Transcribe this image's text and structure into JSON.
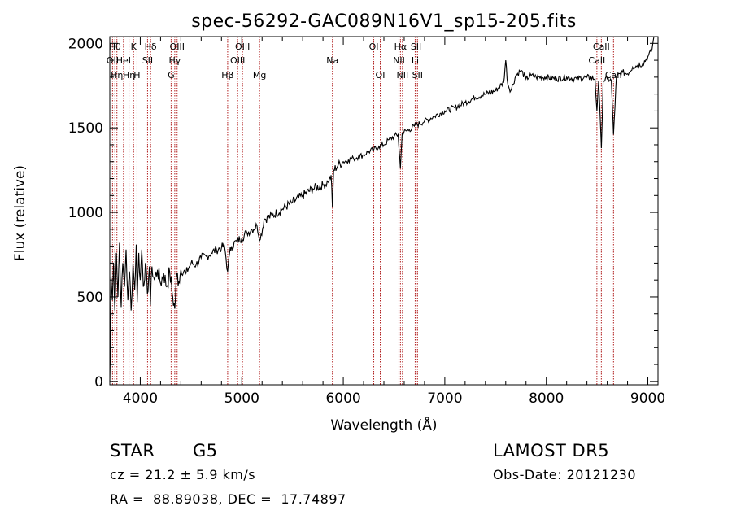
{
  "chart_data": {
    "type": "line",
    "title": "spec-56292-GAC089N16V1_sp15-205.fits",
    "xlabel": "Wavelength (Å)",
    "ylabel": "Flux (relative)",
    "xlim": [
      3700,
      9100
    ],
    "ylim": [
      -20,
      2040
    ],
    "x_ticks": [
      4000,
      5000,
      6000,
      7000,
      8000,
      9000
    ],
    "x_tick_labels": [
      "4000",
      "5000",
      "6000",
      "7000",
      "8000",
      "9000"
    ],
    "y_ticks": [
      0,
      500,
      1000,
      1500,
      2000
    ],
    "y_tick_labels": [
      "0",
      "500",
      "1000",
      "1500",
      "2000"
    ],
    "grid": false,
    "series": [
      {
        "points": [
          [
            3700,
            0
          ],
          [
            3705,
            150
          ],
          [
            3712,
            620
          ],
          [
            3725,
            480
          ],
          [
            3738,
            700
          ],
          [
            3750,
            420
          ],
          [
            3765,
            760
          ],
          [
            3780,
            500
          ],
          [
            3795,
            820
          ],
          [
            3812,
            440
          ],
          [
            3828,
            700
          ],
          [
            3845,
            560
          ],
          [
            3860,
            780
          ],
          [
            3878,
            480
          ],
          [
            3895,
            650
          ],
          [
            3910,
            420
          ],
          [
            3928,
            700
          ],
          [
            3945,
            540
          ],
          [
            3960,
            810
          ],
          [
            3970,
            470
          ],
          [
            3985,
            760
          ],
          [
            4000,
            600
          ],
          [
            4015,
            780
          ],
          [
            4030,
            560
          ],
          [
            4050,
            700
          ],
          [
            4070,
            520
          ],
          [
            4090,
            680
          ],
          [
            4100,
            450
          ],
          [
            4115,
            680
          ],
          [
            4140,
            600
          ],
          [
            4170,
            660
          ],
          [
            4200,
            580
          ],
          [
            4230,
            640
          ],
          [
            4260,
            560
          ],
          [
            4290,
            650
          ],
          [
            4320,
            500
          ],
          [
            4340,
            430
          ],
          [
            4360,
            640
          ],
          [
            4380,
            590
          ],
          [
            4400,
            660
          ],
          [
            4450,
            640
          ],
          [
            4500,
            700
          ],
          [
            4550,
            690
          ],
          [
            4600,
            730
          ],
          [
            4650,
            740
          ],
          [
            4700,
            760
          ],
          [
            4750,
            780
          ],
          [
            4800,
            790
          ],
          [
            4830,
            800
          ],
          [
            4861,
            650
          ],
          [
            4880,
            760
          ],
          [
            4900,
            800
          ],
          [
            4950,
            830
          ],
          [
            5000,
            850
          ],
          [
            5050,
            880
          ],
          [
            5100,
            900
          ],
          [
            5150,
            920
          ],
          [
            5183,
            840
          ],
          [
            5220,
            960
          ],
          [
            5300,
            980
          ],
          [
            5400,
            1020
          ],
          [
            5500,
            1060
          ],
          [
            5600,
            1100
          ],
          [
            5700,
            1140
          ],
          [
            5800,
            1160
          ],
          [
            5850,
            1180
          ],
          [
            5880,
            1220
          ],
          [
            5893,
            1030
          ],
          [
            5905,
            1250
          ],
          [
            5950,
            1280
          ],
          [
            6000,
            1300
          ],
          [
            6050,
            1310
          ],
          [
            6100,
            1320
          ],
          [
            6150,
            1330
          ],
          [
            6200,
            1340
          ],
          [
            6250,
            1360
          ],
          [
            6300,
            1370
          ],
          [
            6350,
            1390
          ],
          [
            6400,
            1400
          ],
          [
            6450,
            1430
          ],
          [
            6500,
            1450
          ],
          [
            6540,
            1460
          ],
          [
            6563,
            1260
          ],
          [
            6580,
            1470
          ],
          [
            6650,
            1490
          ],
          [
            6700,
            1510
          ],
          [
            6800,
            1540
          ],
          [
            6900,
            1570
          ],
          [
            7000,
            1600
          ],
          [
            7100,
            1620
          ],
          [
            7200,
            1650
          ],
          [
            7300,
            1680
          ],
          [
            7400,
            1700
          ],
          [
            7500,
            1720
          ],
          [
            7580,
            1770
          ],
          [
            7600,
            1900
          ],
          [
            7620,
            1760
          ],
          [
            7650,
            1720
          ],
          [
            7700,
            1810
          ],
          [
            7750,
            1840
          ],
          [
            7800,
            1790
          ],
          [
            7850,
            1810
          ],
          [
            7900,
            1800
          ],
          [
            8000,
            1800
          ],
          [
            8100,
            1790
          ],
          [
            8200,
            1800
          ],
          [
            8300,
            1790
          ],
          [
            8400,
            1800
          ],
          [
            8480,
            1790
          ],
          [
            8498,
            1600
          ],
          [
            8515,
            1780
          ],
          [
            8542,
            1380
          ],
          [
            8560,
            1780
          ],
          [
            8600,
            1790
          ],
          [
            8640,
            1780
          ],
          [
            8662,
            1460
          ],
          [
            8690,
            1800
          ],
          [
            8750,
            1830
          ],
          [
            8800,
            1820
          ],
          [
            8850,
            1860
          ],
          [
            8900,
            1870
          ],
          [
            8950,
            1880
          ],
          [
            9000,
            1920
          ],
          [
            9040,
            1960
          ],
          [
            9060,
            2040
          ]
        ]
      }
    ],
    "lines": [
      {
        "wavelength": 3727,
        "label": "OII",
        "row": 1
      },
      {
        "wavelength": 3750,
        "label": "Hθ",
        "row": 0
      },
      {
        "wavelength": 3770,
        "label": "Hη",
        "row": 2
      },
      {
        "wavelength": 3835,
        "label": "HeI",
        "row": 1
      },
      {
        "wavelength": 3889,
        "label": "Hη",
        "row": 2
      },
      {
        "wavelength": 3934,
        "label": "K",
        "row": 0
      },
      {
        "wavelength": 3968,
        "label": "H",
        "row": 2
      },
      {
        "wavelength": 4072,
        "label": "SII",
        "row": 1
      },
      {
        "wavelength": 4102,
        "label": "Hδ",
        "row": 0
      },
      {
        "wavelength": 4304,
        "label": "G",
        "row": 2
      },
      {
        "wavelength": 4340,
        "label": "Hγ",
        "row": 1
      },
      {
        "wavelength": 4363,
        "label": "OIII",
        "row": 0
      },
      {
        "wavelength": 4861,
        "label": "Hβ",
        "row": 2
      },
      {
        "wavelength": 4959,
        "label": "OIII",
        "row": 1
      },
      {
        "wavelength": 5007,
        "label": "OIII",
        "row": 0
      },
      {
        "wavelength": 5175,
        "label": "Mg",
        "row": 2
      },
      {
        "wavelength": 5893,
        "label": "Na",
        "row": 1
      },
      {
        "wavelength": 6300,
        "label": "OI",
        "row": 0
      },
      {
        "wavelength": 6364,
        "label": "OI",
        "row": 2
      },
      {
        "wavelength": 6548,
        "label": "NII",
        "row": 1
      },
      {
        "wavelength": 6563,
        "label": "Hα",
        "row": 0
      },
      {
        "wavelength": 6583,
        "label": "NII",
        "row": 2
      },
      {
        "wavelength": 6708,
        "label": "Li",
        "row": 1
      },
      {
        "wavelength": 6717,
        "label": "SII",
        "row": 0
      },
      {
        "wavelength": 6731,
        "label": "SII",
        "row": 2
      },
      {
        "wavelength": 8498,
        "label": "CaII",
        "row": 1
      },
      {
        "wavelength": 8542,
        "label": "CaII",
        "row": 0
      },
      {
        "wavelength": 8662,
        "label": "CaII",
        "row": 2
      }
    ],
    "colors": {
      "spectrum": "#000000",
      "lines": "#b22222",
      "axes": "#000000"
    }
  },
  "info": {
    "object_class": "STAR",
    "subclass": "G5",
    "survey": "LAMOST DR5",
    "redshift": "cz = 21.2 ± 5.9 km/s",
    "obs_date": "Obs-Date: 20121230",
    "coords": "RA =  88.89038, DEC =  17.74897"
  }
}
